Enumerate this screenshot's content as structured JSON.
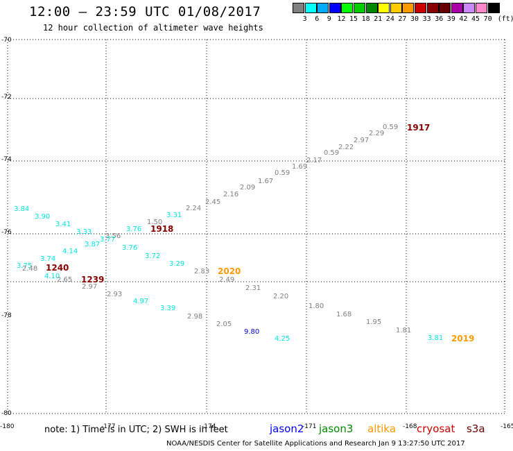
{
  "title": "12:00 — 23:59 UTC 01/08/2017",
  "subtitle": "12 hour collection of altimeter wave heights",
  "legend": {
    "colors": [
      "#808080",
      "#00ffff",
      "#00aaff",
      "#0000ff",
      "#00ff00",
      "#00cc00",
      "#008800",
      "#ffff00",
      "#ffcc00",
      "#ff9900",
      "#cc0000",
      "#880000",
      "#660000",
      "#aa00aa",
      "#cc88ff",
      "#ff88cc",
      "#000000"
    ],
    "labels": [
      "3",
      "6",
      "9",
      "12",
      "15",
      "18",
      "21",
      "24",
      "27",
      "30",
      "33",
      "36",
      "39",
      "42",
      "45",
      "70"
    ],
    "unit": "(ft)"
  },
  "axes": {
    "lat_labels": [
      "-70",
      "-72",
      "-74",
      "-76",
      "-78",
      "-80"
    ],
    "lon_labels": [
      "-180",
      "-177",
      "-174",
      "-171",
      "-168",
      "-165"
    ]
  },
  "observations": [
    {
      "v": "0.59",
      "c": "#808080"
    },
    {
      "v": "2.29",
      "c": "#808080"
    },
    {
      "v": "2.97",
      "c": "#808080"
    },
    {
      "v": "2.22",
      "c": "#808080"
    },
    {
      "v": "0.59",
      "c": "#808080"
    },
    {
      "v": "2.17",
      "c": "#808080"
    },
    {
      "v": "1.69",
      "c": "#808080"
    },
    {
      "v": "0.59",
      "c": "#808080"
    },
    {
      "v": "1.67",
      "c": "#808080"
    },
    {
      "v": "2.09",
      "c": "#808080"
    },
    {
      "v": "2.16",
      "c": "#808080"
    },
    {
      "v": "2.45",
      "c": "#808080"
    },
    {
      "v": "2.24",
      "c": "#808080"
    },
    {
      "v": "3.31",
      "c": "#00e5e5"
    },
    {
      "v": "1.50",
      "c": "#808080"
    },
    {
      "v": "3.76",
      "c": "#00e5e5"
    },
    {
      "v": "3.56",
      "c": "#808080"
    },
    {
      "v": "3.77",
      "c": "#00e5e5"
    },
    {
      "v": "3.87",
      "c": "#00e5e5"
    },
    {
      "v": "3.33",
      "c": "#00e5e5"
    },
    {
      "v": "3.41",
      "c": "#00e5e5"
    },
    {
      "v": "3.90",
      "c": "#00e5e5"
    },
    {
      "v": "3.84",
      "c": "#00e5e5"
    },
    {
      "v": "4.14",
      "c": "#00e5e5"
    },
    {
      "v": "3.74",
      "c": "#00e5e5"
    },
    {
      "v": "3.76",
      "c": "#00e5e5"
    },
    {
      "v": "3.75",
      "c": "#00e5e5"
    },
    {
      "v": "2.48",
      "c": "#808080"
    },
    {
      "v": "4.10",
      "c": "#00e5e5"
    },
    {
      "v": "2.65",
      "c": "#808080"
    },
    {
      "v": "2.97",
      "c": "#808080"
    },
    {
      "v": "3.72",
      "c": "#00e5e5"
    },
    {
      "v": "3.29",
      "c": "#00e5e5"
    },
    {
      "v": "2.83",
      "c": "#808080"
    },
    {
      "v": "2.49",
      "c": "#808080"
    },
    {
      "v": "2.31",
      "c": "#808080"
    },
    {
      "v": "2.20",
      "c": "#808080"
    },
    {
      "v": "1.80",
      "c": "#808080"
    },
    {
      "v": "1.68",
      "c": "#808080"
    },
    {
      "v": "1.95",
      "c": "#808080"
    },
    {
      "v": "1.81",
      "c": "#808080"
    },
    {
      "v": "3.81",
      "c": "#00e5e5"
    },
    {
      "v": "2.93",
      "c": "#808080"
    },
    {
      "v": "4.97",
      "c": "#00e5e5"
    },
    {
      "v": "3.39",
      "c": "#00e5e5"
    },
    {
      "v": "2.98",
      "c": "#808080"
    },
    {
      "v": "2.05",
      "c": "#808080"
    },
    {
      "v": "9.80",
      "c": "#0000cc"
    },
    {
      "v": "4.25",
      "c": "#00e5e5"
    }
  ],
  "time_labels": [
    {
      "v": "1917",
      "c": "#880000"
    },
    {
      "v": "1918",
      "c": "#880000"
    },
    {
      "v": "1240",
      "c": "#880000"
    },
    {
      "v": "1239",
      "c": "#880000"
    },
    {
      "v": "2020",
      "c": "#ff9900"
    },
    {
      "v": "2019",
      "c": "#ff9900"
    }
  ],
  "note": "note: 1) Time is in UTC; 2) SWH is in feet",
  "satellites": [
    {
      "name": "jason2",
      "color": "#0000ff"
    },
    {
      "name": "jason3",
      "color": "#008800"
    },
    {
      "name": "altika",
      "color": "#ff9900"
    },
    {
      "name": "cryosat",
      "color": "#cc0000"
    },
    {
      "name": "s3a",
      "color": "#660000"
    }
  ],
  "credit": "NOAA/NESDIS Center for Satellite Applications and Research   Jan  9 13:27:50 UTC 2017"
}
